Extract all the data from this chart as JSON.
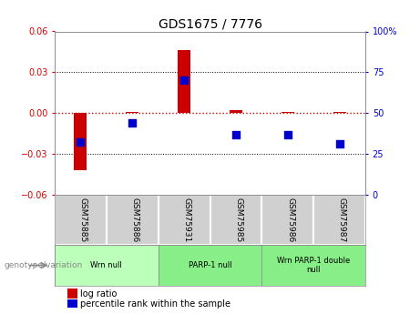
{
  "title": "GDS1675 / 7776",
  "samples": [
    "GSM75885",
    "GSM75886",
    "GSM75931",
    "GSM75985",
    "GSM75986",
    "GSM75987"
  ],
  "log_ratios": [
    -0.042,
    0.001,
    0.046,
    0.002,
    0.001,
    0.001
  ],
  "percentile_ranks": [
    32,
    44,
    70,
    37,
    37,
    31
  ],
  "ylim_left": [
    -0.06,
    0.06
  ],
  "ylim_right": [
    0,
    100
  ],
  "yticks_left": [
    -0.06,
    -0.03,
    0,
    0.03,
    0.06
  ],
  "yticks_right": [
    0,
    25,
    50,
    75,
    100
  ],
  "bar_color": "#cc0000",
  "dot_color": "#0000cc",
  "zero_line_color": "#cc0000",
  "left_axis_color": "#cc0000",
  "right_axis_color": "#0000cc",
  "sample_box_color": "#d0d0d0",
  "groups": [
    {
      "start": 0,
      "end": 1,
      "label": "Wrn null",
      "color": "#bbffbb"
    },
    {
      "start": 2,
      "end": 3,
      "label": "PARP-1 null",
      "color": "#88ee88"
    },
    {
      "start": 4,
      "end": 5,
      "label": "Wrn PARP-1 double\nnull",
      "color": "#88ee88"
    }
  ],
  "legend_bar_label": "log ratio",
  "legend_dot_label": "percentile rank within the sample",
  "genotype_label": "genotype/variation"
}
